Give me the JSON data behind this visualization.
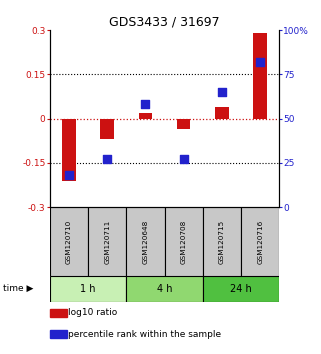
{
  "title": "GDS3433 / 31697",
  "samples": [
    "GSM120710",
    "GSM120711",
    "GSM120648",
    "GSM120708",
    "GSM120715",
    "GSM120716"
  ],
  "log10_ratio": [
    -0.21,
    -0.07,
    0.02,
    -0.035,
    0.04,
    0.29
  ],
  "percentile_rank": [
    18,
    27,
    58,
    27,
    65,
    82
  ],
  "groups": [
    {
      "label": "1 h",
      "indices": [
        0,
        1
      ],
      "color": "#c8f0b4"
    },
    {
      "label": "4 h",
      "indices": [
        2,
        3
      ],
      "color": "#90d870"
    },
    {
      "label": "24 h",
      "indices": [
        4,
        5
      ],
      "color": "#50c040"
    }
  ],
  "bar_color": "#cc1111",
  "scatter_color": "#2222cc",
  "ylim_left": [
    -0.3,
    0.3
  ],
  "ylim_right": [
    0,
    100
  ],
  "yticks_left": [
    -0.3,
    -0.15,
    0,
    0.15,
    0.3
  ],
  "yticks_right": [
    0,
    25,
    50,
    75,
    100
  ],
  "ytick_labels_left": [
    "-0.3",
    "-0.15",
    "0",
    "0.15",
    "0.3"
  ],
  "ytick_labels_right": [
    "0",
    "25",
    "50",
    "75",
    "100%"
  ],
  "dotted_lines": [
    -0.15,
    0.15
  ],
  "legend_items": [
    {
      "color": "#cc1111",
      "label": "log10 ratio"
    },
    {
      "color": "#2222cc",
      "label": "percentile rank within the sample"
    }
  ],
  "bar_width": 0.35,
  "scatter_size": 28,
  "sample_box_color": "#c8c8c8",
  "time_label": "time"
}
